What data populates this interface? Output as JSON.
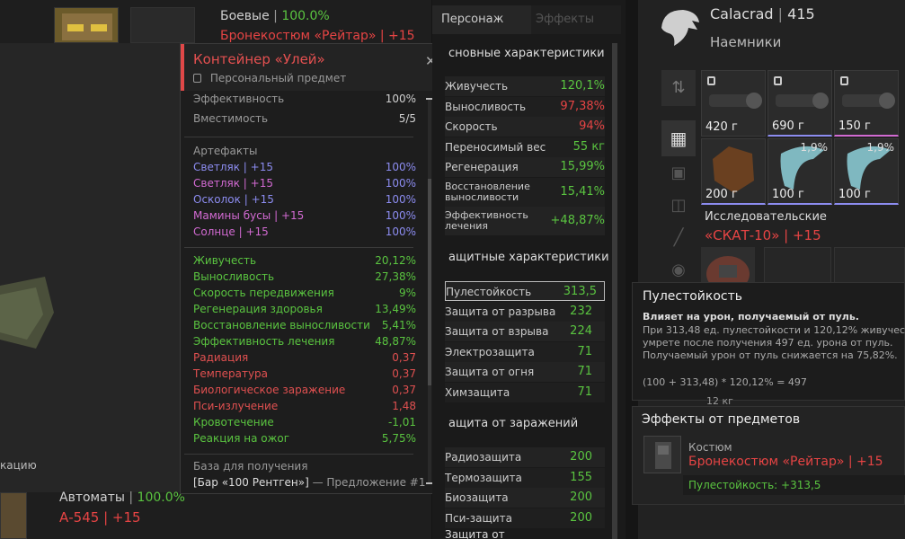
{
  "top_left": {
    "weapon_label": "Боевые",
    "weapon_pct": "100.0%",
    "armor_name": "Бронекостюм «Рейтар» | +15"
  },
  "bottom_left": {
    "weapon_label": "Автоматы",
    "weapon_pct": "100.0%",
    "weapon_name": "А-545 | +15",
    "side_text": "кацию"
  },
  "tooltip": {
    "title": "Контейнер «Улей»",
    "subtitle": "Персональный предмет",
    "close": "✕",
    "stats": [
      {
        "label": "Эффективность",
        "value": "100%"
      },
      {
        "label": "Вместимость",
        "value": "5/5"
      }
    ],
    "artifacts_header": "Артефакты",
    "artifacts": [
      {
        "name": "Светляк | +15",
        "value": "100%",
        "color": "#8c8cf0"
      },
      {
        "name": "Светляк | +15",
        "value": "100%",
        "color": "#d26ad2"
      },
      {
        "name": "Осколок | +15",
        "value": "100%",
        "color": "#8c8cf0"
      },
      {
        "name": "Мамины бусы | +15",
        "value": "100%",
        "color": "#d26ad2"
      },
      {
        "name": "Солнце | +15",
        "value": "100%",
        "color": "#d26ad2"
      }
    ],
    "effects": [
      {
        "label": "Живучесть",
        "value": "20,12%",
        "color": "#5ac440"
      },
      {
        "label": "Выносливость",
        "value": "27,38%",
        "color": "#5ac440"
      },
      {
        "label": "Скорость передвижения",
        "value": "9%",
        "color": "#5ac440"
      },
      {
        "label": "Регенерация здоровья",
        "value": "13,49%",
        "color": "#5ac440"
      },
      {
        "label": "Восстановление выносливости",
        "value": "5,41%",
        "color": "#5ac440"
      },
      {
        "label": "Эффективность лечения",
        "value": "48,87%",
        "color": "#5ac440"
      },
      {
        "label": "Радиация",
        "value": "0,37",
        "color": "#e05050"
      },
      {
        "label": "Температура",
        "value": "0,37",
        "color": "#e05050"
      },
      {
        "label": "Биологическое заражение",
        "value": "0,37",
        "color": "#e05050"
      },
      {
        "label": "Пси-излучение",
        "value": "1,48",
        "color": "#e05050"
      },
      {
        "label": "Кровотечение",
        "value": "-1,01",
        "color": "#5ac440"
      },
      {
        "label": "Реакция на ожог",
        "value": "5,75%",
        "color": "#5ac440"
      }
    ],
    "base_header": "База для получения",
    "base_location": "[Бар «100 Рентген»]",
    "base_offer": " — Предложение #1"
  },
  "panel_tabs": {
    "character": "Персонаж",
    "effects": "Эффекты"
  },
  "main_stats_header": "сновные характеристики",
  "main_stats": [
    {
      "label": "Живучесть",
      "value": "120,1%",
      "color": "#5ac440"
    },
    {
      "label": "Выносливость",
      "value": "97,38%",
      "color": "#e64444"
    },
    {
      "label": "Скорость",
      "value": "94%",
      "color": "#e64444"
    },
    {
      "label": "Переносимый вес",
      "value": "55 кг",
      "color": "#5ac440"
    },
    {
      "label": "Регенерация",
      "value": "15,99%",
      "color": "#5ac440"
    },
    {
      "label": "Восстановление выносливости",
      "value": "15,41%",
      "color": "#5ac440"
    },
    {
      "label": "Эффективность лечения",
      "value": "+48,87%",
      "color": "#5ac440"
    }
  ],
  "protect_header": "ащитные характеристики",
  "protect_stats": [
    {
      "label": "Пулестойкость",
      "value": "313,5"
    },
    {
      "label": "Защита от разрыва",
      "value": "232"
    },
    {
      "label": "Защита от взрыва",
      "value": "224"
    },
    {
      "label": "Электрозащита",
      "value": "71"
    },
    {
      "label": "Защита от огня",
      "value": "71"
    },
    {
      "label": "Химзащита",
      "value": "71"
    }
  ],
  "infect_header": "ащита от заражений",
  "infect_stats": [
    {
      "label": "Радиозащита",
      "value": "200"
    },
    {
      "label": "Термозащита",
      "value": "155"
    },
    {
      "label": "Биозащита",
      "value": "200"
    },
    {
      "label": "Пси-защита",
      "value": "200"
    }
  ],
  "infect_last": "Защита от",
  "player": {
    "name": "Calacrad",
    "sep": "|",
    "level": "415",
    "faction": "Наемники"
  },
  "inventory": [
    {
      "price": "420 г",
      "locked": true,
      "pct": ""
    },
    {
      "price": "690 г",
      "locked": true,
      "pct": ""
    },
    {
      "price": "150 г",
      "locked": true,
      "pct": ""
    },
    {
      "price": "200 г",
      "locked": false,
      "pct": ""
    },
    {
      "price": "100 г",
      "locked": false,
      "pct": "1,9%"
    },
    {
      "price": "100 г",
      "locked": false,
      "pct": "1,9%"
    }
  ],
  "research": {
    "label": "Исследовательские",
    "name": "«СКАТ-10» | +15"
  },
  "weight_text": "12 кг",
  "hint": {
    "title": "Пулестойкость",
    "lead": "Влияет на урон, получаемый от пуль.",
    "line1": "При 313,48 ед. пулестойкости и 120,12% живучест",
    "line2": "умрете после получения 497 ед. урона от пуль.",
    "line3": "Получаемый урон от пуль снижается на 75,82%.",
    "formula": "(100 + 313,48) * 120,12% = 497"
  },
  "item_effects": {
    "header": "Эффекты от предметов",
    "type": "Костюм",
    "name": "Бронекостюм «Рейтар» | +15",
    "bonus": "Пулестойкость: +313,5"
  },
  "colors": {
    "accent_red": "#e04848",
    "green": "#5ac440",
    "red": "#e64444"
  }
}
